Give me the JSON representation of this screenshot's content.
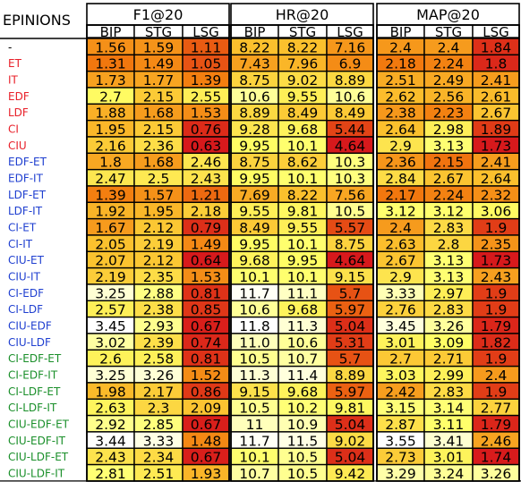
{
  "chart_data": {
    "type": "heatmap",
    "corner_label": "EPINIONS",
    "groups": [
      {
        "title": "F1@20",
        "columns": [
          "BIP",
          "STG",
          "LSG"
        ]
      },
      {
        "title": "HR@20",
        "columns": [
          "BIP",
          "STG",
          "LSG"
        ]
      },
      {
        "title": "MAP@20",
        "columns": [
          "BIP",
          "STG",
          "LSG"
        ]
      }
    ],
    "rows": [
      {
        "label": "-",
        "color": "#000000",
        "values": [
          [
            1.56,
            1.59,
            1.11
          ],
          [
            8.22,
            8.22,
            7.16
          ],
          [
            2.38,
            2.4,
            1.84
          ]
        ]
      },
      {
        "label": "ET",
        "color": "#e8202a",
        "values": [
          [
            1.31,
            1.49,
            1.05
          ],
          [
            7.43,
            7.96,
            6.9
          ],
          [
            2.18,
            2.24,
            1.8
          ]
        ]
      },
      {
        "label": "IT",
        "color": "#e8202a",
        "values": [
          [
            1.73,
            1.77,
            1.39
          ],
          [
            8.75,
            9.02,
            8.89
          ],
          [
            2.51,
            2.49,
            2.41
          ]
        ]
      },
      {
        "label": "EDF",
        "color": "#e8202a",
        "values": [
          [
            2.7,
            2.15,
            2.55
          ],
          [
            10.6,
            9.55,
            10.6
          ],
          [
            2.62,
            2.56,
            2.61
          ]
        ]
      },
      {
        "label": "LDF",
        "color": "#e8202a",
        "values": [
          [
            1.88,
            1.68,
            1.53
          ],
          [
            8.89,
            8.49,
            8.49
          ],
          [
            2.38,
            2.23,
            2.67
          ]
        ]
      },
      {
        "label": "CI",
        "color": "#e8202a",
        "values": [
          [
            1.95,
            2.15,
            0.76
          ],
          [
            9.28,
            9.68,
            5.44
          ],
          [
            2.64,
            2.98,
            1.89
          ]
        ]
      },
      {
        "label": "CIU",
        "color": "#e8202a",
        "values": [
          [
            2.16,
            2.36,
            0.63
          ],
          [
            9.95,
            10.1,
            4.64
          ],
          [
            2.9,
            3.13,
            1.73
          ]
        ]
      },
      {
        "label": "EDF-ET",
        "color": "#1f3fd0",
        "values": [
          [
            1.8,
            1.68,
            2.46
          ],
          [
            8.75,
            8.62,
            10.3
          ],
          [
            2.36,
            2.15,
            2.41
          ]
        ]
      },
      {
        "label": "EDF-IT",
        "color": "#1f3fd0",
        "values": [
          [
            2.47,
            2.5,
            2.43
          ],
          [
            9.95,
            10.1,
            10.3
          ],
          [
            2.84,
            2.67,
            2.64
          ]
        ]
      },
      {
        "label": "LDF-ET",
        "color": "#1f3fd0",
        "values": [
          [
            1.39,
            1.57,
            1.21
          ],
          [
            7.69,
            8.22,
            7.56
          ],
          [
            2.17,
            2.24,
            2.32
          ]
        ]
      },
      {
        "label": "LDF-IT",
        "color": "#1f3fd0",
        "values": [
          [
            1.92,
            1.95,
            2.18
          ],
          [
            9.55,
            9.81,
            10.5
          ],
          [
            3.12,
            3.12,
            3.06
          ]
        ]
      },
      {
        "label": "CI-ET",
        "color": "#1f3fd0",
        "values": [
          [
            1.67,
            2.12,
            0.79
          ],
          [
            8.49,
            9.55,
            5.57
          ],
          [
            2.4,
            2.83,
            1.9
          ]
        ]
      },
      {
        "label": "CI-IT",
        "color": "#1f3fd0",
        "values": [
          [
            2.05,
            2.19,
            1.49
          ],
          [
            9.95,
            10.1,
            8.75
          ],
          [
            2.63,
            2.8,
            2.35
          ]
        ]
      },
      {
        "label": "CIU-ET",
        "color": "#1f3fd0",
        "values": [
          [
            2.07,
            2.12,
            0.64
          ],
          [
            9.68,
            9.95,
            4.64
          ],
          [
            2.67,
            3.13,
            1.73
          ]
        ]
      },
      {
        "label": "CIU-IT",
        "color": "#1f3fd0",
        "values": [
          [
            2.19,
            2.35,
            1.53
          ],
          [
            10.1,
            10.1,
            9.15
          ],
          [
            2.9,
            3.13,
            2.43
          ]
        ]
      },
      {
        "label": "CI-EDF",
        "color": "#1f3fd0",
        "values": [
          [
            3.25,
            2.88,
            0.81
          ],
          [
            11.7,
            11.1,
            5.7
          ],
          [
            3.33,
            2.97,
            1.9
          ]
        ]
      },
      {
        "label": "CI-LDF",
        "color": "#1f3fd0",
        "values": [
          [
            2.57,
            2.38,
            0.85
          ],
          [
            10.6,
            9.68,
            5.97
          ],
          [
            2.76,
            2.83,
            1.9
          ]
        ]
      },
      {
        "label": "CIU-EDF",
        "color": "#1f3fd0",
        "values": [
          [
            3.45,
            2.93,
            0.67
          ],
          [
            11.8,
            11.3,
            5.04
          ],
          [
            3.45,
            3.26,
            1.79
          ]
        ]
      },
      {
        "label": "CIU-LDF",
        "color": "#1f3fd0",
        "values": [
          [
            3.02,
            2.39,
            0.74
          ],
          [
            11.0,
            10.6,
            5.31
          ],
          [
            3.01,
            3.09,
            1.82
          ]
        ]
      },
      {
        "label": "CI-EDF-ET",
        "color": "#1a8f2a",
        "values": [
          [
            2.6,
            2.58,
            0.81
          ],
          [
            10.5,
            10.7,
            5.7
          ],
          [
            2.7,
            2.71,
            1.9
          ]
        ]
      },
      {
        "label": "CI-EDF-IT",
        "color": "#1a8f2a",
        "values": [
          [
            3.25,
            3.26,
            1.52
          ],
          [
            11.3,
            11.4,
            8.89
          ],
          [
            3.03,
            2.99,
            2.4
          ]
        ]
      },
      {
        "label": "CI-LDF-ET",
        "color": "#1a8f2a",
        "values": [
          [
            1.98,
            2.17,
            0.86
          ],
          [
            9.15,
            9.68,
            5.97
          ],
          [
            2.42,
            2.83,
            1.9
          ]
        ]
      },
      {
        "label": "CI-LDF-IT",
        "color": "#1a8f2a",
        "values": [
          [
            2.63,
            2.3,
            2.09
          ],
          [
            10.5,
            10.2,
            9.81
          ],
          [
            3.15,
            3.14,
            2.77
          ]
        ]
      },
      {
        "label": "CIU-EDF-ET",
        "color": "#1a8f2a",
        "values": [
          [
            2.92,
            2.85,
            0.67
          ],
          [
            11.0,
            10.9,
            5.04
          ],
          [
            2.87,
            3.11,
            1.79
          ]
        ]
      },
      {
        "label": "CIU-EDF-IT",
        "color": "#1a8f2a",
        "values": [
          [
            3.44,
            3.33,
            1.48
          ],
          [
            11.7,
            11.5,
            9.02
          ],
          [
            3.55,
            3.41,
            2.46
          ]
        ]
      },
      {
        "label": "CIU-LDF-ET",
        "color": "#1a8f2a",
        "values": [
          [
            2.43,
            2.34,
            0.67
          ],
          [
            10.1,
            10.5,
            5.04
          ],
          [
            2.73,
            3.01,
            1.74
          ]
        ]
      },
      {
        "label": "CIU-LDF-IT",
        "color": "#1a8f2a",
        "values": [
          [
            2.81,
            2.51,
            1.93
          ],
          [
            10.7,
            10.5,
            9.42
          ],
          [
            3.29,
            3.24,
            3.26
          ]
        ]
      }
    ],
    "display_overrides": {
      "1": {
        "18": "11.0"
      },
      "2": {
        "0": "2.4"
      }
    },
    "color_scale": [
      "#d7191c",
      "#f27a0e",
      "#fbc02d",
      "#ffff66",
      "#ffffff"
    ]
  }
}
